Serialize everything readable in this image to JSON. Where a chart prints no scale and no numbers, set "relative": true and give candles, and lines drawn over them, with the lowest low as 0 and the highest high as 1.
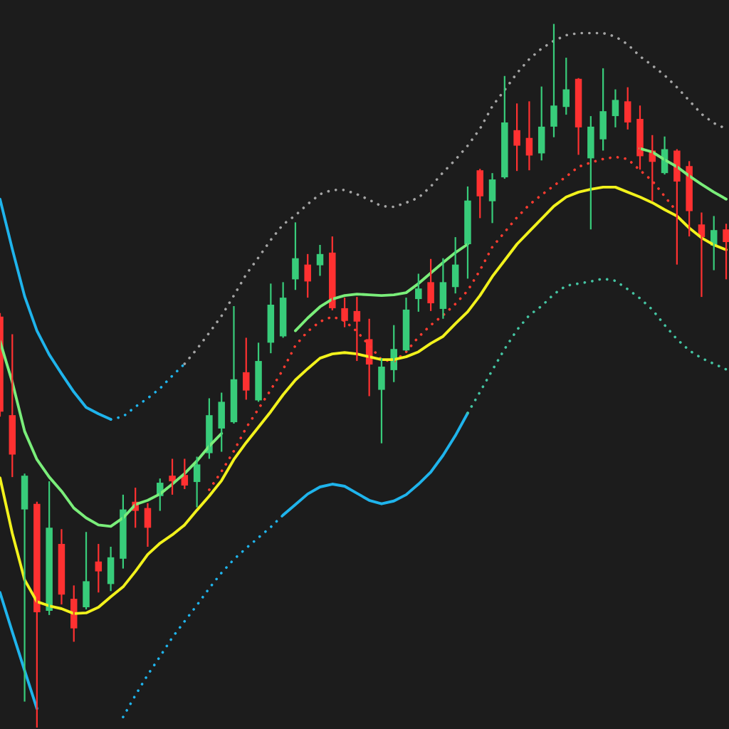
{
  "chart_data": {
    "type": "candlestick",
    "relative": true,
    "categories": [
      null,
      null,
      null,
      null,
      null,
      null,
      null,
      null,
      null,
      null,
      null,
      null,
      null,
      null,
      null,
      null,
      null,
      null,
      null,
      null,
      null,
      null,
      null,
      null,
      null,
      null,
      null,
      null,
      null,
      null,
      null,
      null,
      null,
      null,
      null,
      null,
      null,
      null,
      null,
      null,
      null,
      null,
      null,
      null,
      null,
      null,
      null,
      null,
      null,
      null,
      null,
      null,
      null,
      null,
      null,
      null,
      null,
      null,
      null,
      null
    ],
    "ohlc": [
      [
        0.584,
        0.589,
        0.442,
        0.449
      ],
      [
        0.444,
        0.559,
        0.356,
        0.388
      ],
      [
        0.31,
        0.361,
        0.037,
        0.358
      ],
      [
        0.318,
        0.321,
        0.0,
        0.164
      ],
      [
        0.166,
        0.35,
        0.16,
        0.284
      ],
      [
        0.261,
        0.282,
        0.175,
        0.189
      ],
      [
        0.183,
        0.202,
        0.122,
        0.141
      ],
      [
        0.171,
        0.278,
        0.168,
        0.208
      ],
      [
        0.236,
        0.261,
        0.192,
        0.222
      ],
      [
        0.204,
        0.257,
        0.194,
        0.242
      ],
      [
        0.24,
        0.331,
        0.226,
        0.31
      ],
      [
        0.321,
        0.341,
        0.284,
        0.308
      ],
      [
        0.312,
        0.319,
        0.257,
        0.284
      ],
      [
        0.329,
        0.354,
        0.308,
        0.348
      ],
      [
        0.358,
        0.382,
        0.331,
        0.35
      ],
      [
        0.359,
        0.382,
        0.339,
        0.344
      ],
      [
        0.349,
        0.385,
        0.313,
        0.374
      ],
      [
        0.39,
        0.468,
        0.382,
        0.444
      ],
      [
        0.425,
        0.476,
        0.392,
        0.463
      ],
      [
        0.434,
        0.599,
        0.432,
        0.495
      ],
      [
        0.505,
        0.554,
        0.466,
        0.479
      ],
      [
        0.465,
        0.547,
        0.463,
        0.521
      ],
      [
        0.547,
        0.631,
        0.532,
        0.601
      ],
      [
        0.556,
        0.633,
        0.554,
        0.611
      ],
      [
        0.637,
        0.718,
        0.622,
        0.667
      ],
      [
        0.658,
        0.673,
        0.611,
        0.634
      ],
      [
        0.657,
        0.686,
        0.642,
        0.673
      ],
      [
        0.675,
        0.698,
        0.593,
        0.596
      ],
      [
        0.596,
        0.611,
        0.569,
        0.578
      ],
      [
        0.592,
        0.612,
        0.521,
        0.577
      ],
      [
        0.552,
        0.581,
        0.471,
        0.516
      ],
      [
        0.48,
        0.525,
        0.404,
        0.513
      ],
      [
        0.508,
        0.572,
        0.491,
        0.538
      ],
      [
        0.536,
        0.611,
        0.535,
        0.594
      ],
      [
        0.609,
        0.645,
        0.591,
        0.624
      ],
      [
        0.633,
        0.666,
        0.592,
        0.603
      ],
      [
        0.595,
        0.667,
        0.581,
        0.633
      ],
      [
        0.626,
        0.697,
        0.617,
        0.658
      ],
      [
        0.687,
        0.769,
        0.638,
        0.749
      ],
      [
        0.792,
        0.794,
        0.724,
        0.755
      ],
      [
        0.748,
        0.788,
        0.717,
        0.779
      ],
      [
        0.782,
        0.926,
        0.78,
        0.86
      ],
      [
        0.849,
        0.887,
        0.791,
        0.827
      ],
      [
        0.838,
        0.89,
        0.792,
        0.813
      ],
      [
        0.816,
        0.911,
        0.806,
        0.854
      ],
      [
        0.854,
        1.0,
        0.839,
        0.884
      ],
      [
        0.882,
        0.952,
        0.871,
        0.907
      ],
      [
        0.922,
        0.923,
        0.814,
        0.853
      ],
      [
        0.809,
        0.869,
        0.708,
        0.854
      ],
      [
        0.836,
        0.937,
        0.82,
        0.876
      ],
      [
        0.869,
        0.907,
        0.853,
        0.892
      ],
      [
        0.89,
        0.91,
        0.85,
        0.86
      ],
      [
        0.865,
        0.884,
        0.793,
        0.812
      ],
      [
        0.82,
        0.842,
        0.748,
        0.804
      ],
      [
        0.788,
        0.84,
        0.786,
        0.822
      ],
      [
        0.82,
        0.822,
        0.658,
        0.776
      ],
      [
        0.798,
        0.805,
        0.698,
        0.734
      ],
      [
        0.715,
        0.732,
        0.612,
        0.697
      ],
      [
        0.685,
        0.727,
        0.65,
        0.707
      ],
      [
        0.708,
        0.716,
        0.637,
        0.69
      ]
    ],
    "colors": [
      "#ff3131",
      "#ff3131",
      "#38cc7a",
      "#ff3131",
      "#38cc7a",
      "#ff3131",
      "#ff3131",
      "#38cc7a",
      "#ff3131",
      "#38cc7a",
      "#38cc7a",
      "#ff3131",
      "#ff3131",
      "#38cc7a",
      "#ff3131",
      "#ff3131",
      "#38cc7a",
      "#38cc7a",
      "#38cc7a",
      "#38cc7a",
      "#ff3131",
      "#38cc7a",
      "#38cc7a",
      "#38cc7a",
      "#38cc7a",
      "#ff3131",
      "#38cc7a",
      "#ff3131",
      "#ff3131",
      "#ff3131",
      "#ff3131",
      "#38cc7a",
      "#38cc7a",
      "#38cc7a",
      "#38cc7a",
      "#ff3131",
      "#38cc7a",
      "#38cc7a",
      "#38cc7a",
      "#ff3131",
      "#38cc7a",
      "#38cc7a",
      "#ff3131",
      "#ff3131",
      "#38cc7a",
      "#38cc7a",
      "#38cc7a",
      "#ff3131",
      "#38cc7a",
      "#38cc7a",
      "#38cc7a",
      "#ff3131",
      "#ff3131",
      "#ff3131",
      "#38cc7a",
      "#ff3131",
      "#ff3131",
      "#ff3131",
      "#38cc7a",
      "#ff3131"
    ],
    "series": [
      {
        "type": "line",
        "color": "#1fb4ec",
        "line_style": "solid",
        "values": [
          0.751,
          0.68,
          0.613,
          0.564,
          0.53,
          0.503,
          0.477,
          0.455,
          0.446,
          0.438,
          null,
          null,
          null,
          null,
          null,
          null,
          null,
          null,
          null,
          null,
          null,
          null,
          null,
          null,
          null,
          null,
          null,
          null,
          null,
          null,
          null,
          null,
          null,
          null,
          null,
          null,
          null,
          null,
          null,
          null,
          null,
          null,
          null,
          null,
          null,
          null,
          null,
          null,
          null,
          null,
          null,
          null,
          null,
          null,
          null,
          null,
          null,
          null,
          null,
          null
        ]
      },
      {
        "type": "line",
        "color": "#1fb4ec",
        "line_style": "dotted",
        "values": [
          null,
          null,
          null,
          null,
          null,
          null,
          null,
          null,
          null,
          0.438,
          0.442,
          0.456,
          0.468,
          0.482,
          0.5,
          0.517,
          null,
          null,
          null,
          null,
          null,
          null,
          null,
          null,
          null,
          null,
          null,
          null,
          null,
          null,
          null,
          null,
          null,
          null,
          null,
          null,
          null,
          null,
          null,
          null,
          null,
          null,
          null,
          null,
          null,
          null,
          null,
          null,
          null,
          null,
          null,
          null,
          null,
          null,
          null,
          null,
          null,
          null,
          null,
          null
        ]
      },
      {
        "type": "line",
        "color": "#a4a4a4",
        "line_style": "dotted",
        "values": [
          null,
          null,
          null,
          null,
          null,
          null,
          null,
          null,
          null,
          null,
          null,
          null,
          null,
          null,
          null,
          0.517,
          0.538,
          0.561,
          0.585,
          0.614,
          0.644,
          0.668,
          0.693,
          0.715,
          0.728,
          0.744,
          0.758,
          0.764,
          0.764,
          0.758,
          0.75,
          0.741,
          0.74,
          0.746,
          0.753,
          0.769,
          0.789,
          0.807,
          0.827,
          0.851,
          0.883,
          0.906,
          0.93,
          0.95,
          0.965,
          0.976,
          0.984,
          0.987,
          0.987,
          0.987,
          0.982,
          0.971,
          0.954,
          0.941,
          0.927,
          0.91,
          0.891,
          0.872,
          0.859,
          0.851
        ]
      },
      {
        "type": "line",
        "color": "#1fb4ec",
        "line_style": "solid",
        "values": [
          0.192,
          0.136,
          0.081,
          0.027,
          null,
          null,
          null,
          null,
          null,
          null,
          null,
          null,
          null,
          null,
          null,
          null,
          null,
          null,
          null,
          null,
          null,
          null,
          null,
          null,
          null,
          null,
          null,
          null,
          null,
          null,
          null,
          null,
          null,
          null,
          null,
          null,
          null,
          null,
          null,
          null,
          null,
          null,
          null,
          null,
          null,
          null,
          null,
          null,
          null,
          null,
          null,
          null,
          null,
          null,
          null,
          null,
          null,
          null,
          null,
          null
        ]
      },
      {
        "type": "line",
        "color": "#1fb4ec",
        "line_style": "dotted",
        "values": [
          null,
          null,
          null,
          null,
          null,
          null,
          null,
          null,
          null,
          null,
          0.015,
          0.046,
          0.075,
          0.101,
          0.128,
          0.151,
          0.174,
          0.198,
          0.22,
          0.239,
          0.255,
          0.27,
          0.285,
          0.302,
          null,
          null,
          null,
          null,
          null,
          null,
          null,
          null,
          null,
          null,
          null,
          null,
          null,
          null,
          null,
          null,
          null,
          null,
          null,
          null,
          null,
          null,
          null,
          null,
          null,
          null,
          null,
          null,
          null,
          null,
          null,
          null,
          null,
          null,
          null,
          null
        ]
      },
      {
        "type": "line",
        "color": "#1fb4ec",
        "line_style": "solid",
        "values": [
          null,
          null,
          null,
          null,
          null,
          null,
          null,
          null,
          null,
          null,
          null,
          null,
          null,
          null,
          null,
          null,
          null,
          null,
          null,
          null,
          null,
          null,
          null,
          0.302,
          0.317,
          0.332,
          0.342,
          0.346,
          0.343,
          0.333,
          0.323,
          0.318,
          0.322,
          0.331,
          0.346,
          0.363,
          0.387,
          0.415,
          0.447,
          null,
          null,
          null,
          null,
          null,
          null,
          null,
          null,
          null,
          null,
          null,
          null,
          null,
          null,
          null,
          null,
          null,
          null,
          null,
          null,
          null
        ]
      },
      {
        "type": "line",
        "color": "#44c4a2",
        "line_style": "dotted",
        "values": [
          null,
          null,
          null,
          null,
          null,
          null,
          null,
          null,
          null,
          null,
          null,
          null,
          null,
          null,
          null,
          null,
          null,
          null,
          null,
          null,
          null,
          null,
          null,
          null,
          null,
          null,
          null,
          null,
          null,
          null,
          null,
          null,
          null,
          null,
          null,
          null,
          null,
          null,
          0.447,
          0.477,
          0.508,
          0.538,
          0.565,
          0.586,
          0.599,
          0.616,
          0.628,
          0.631,
          0.634,
          0.638,
          0.635,
          0.623,
          0.61,
          0.594,
          0.572,
          0.552,
          0.536,
          0.525,
          0.517,
          0.509
        ]
      },
      {
        "type": "line",
        "color": "#7aee7a",
        "line_style": "solid",
        "values": [
          0.549,
          0.491,
          0.421,
          0.381,
          0.356,
          0.336,
          0.312,
          0.298,
          0.288,
          0.286,
          0.298,
          0.317,
          0.323,
          0.332,
          0.346,
          0.361,
          0.379,
          0.4,
          0.418,
          null,
          null,
          null,
          null,
          null,
          0.564,
          0.582,
          0.598,
          0.609,
          0.614,
          0.616,
          0.615,
          0.614,
          0.615,
          0.618,
          0.631,
          0.646,
          0.661,
          0.675,
          0.687,
          null,
          null,
          null,
          null,
          null,
          null,
          null,
          null,
          null,
          null,
          null,
          null,
          null,
          0.823,
          0.818,
          0.807,
          0.797,
          0.784,
          0.772,
          0.761,
          0.751
        ]
      },
      {
        "type": "line",
        "color": "#ff3b30",
        "line_style": "dotted",
        "values": [
          null,
          null,
          null,
          null,
          null,
          null,
          null,
          null,
          null,
          null,
          null,
          null,
          null,
          null,
          null,
          null,
          null,
          0.338,
          0.364,
          0.393,
          0.426,
          0.453,
          0.48,
          0.509,
          0.543,
          0.563,
          0.577,
          0.584,
          0.578,
          0.563,
          0.543,
          0.523,
          0.52,
          0.534,
          0.555,
          0.572,
          0.586,
          0.602,
          0.621,
          0.65,
          0.683,
          0.704,
          0.725,
          0.743,
          0.757,
          0.77,
          0.783,
          0.797,
          0.803,
          0.808,
          0.811,
          0.808,
          0.792,
          0.777,
          0.755,
          0.733,
          null,
          null,
          null,
          null
        ]
      },
      {
        "type": "line",
        "color": "#f2f21c",
        "line_style": "solid",
        "values": [
          0.355,
          0.276,
          0.21,
          0.179,
          0.173,
          0.169,
          0.162,
          0.163,
          0.171,
          0.186,
          0.2,
          0.222,
          0.246,
          0.262,
          0.274,
          0.288,
          0.309,
          0.329,
          0.351,
          0.381,
          0.405,
          0.427,
          0.449,
          0.473,
          0.494,
          0.51,
          0.525,
          0.531,
          0.533,
          0.531,
          0.527,
          0.523,
          0.523,
          0.527,
          0.534,
          0.546,
          0.556,
          0.574,
          0.591,
          0.614,
          0.641,
          0.664,
          0.687,
          0.705,
          0.723,
          0.741,
          0.754,
          0.761,
          0.765,
          0.768,
          0.768,
          0.761,
          0.754,
          0.746,
          0.736,
          0.727,
          0.71,
          0.696,
          0.686,
          0.679
        ]
      }
    ]
  }
}
